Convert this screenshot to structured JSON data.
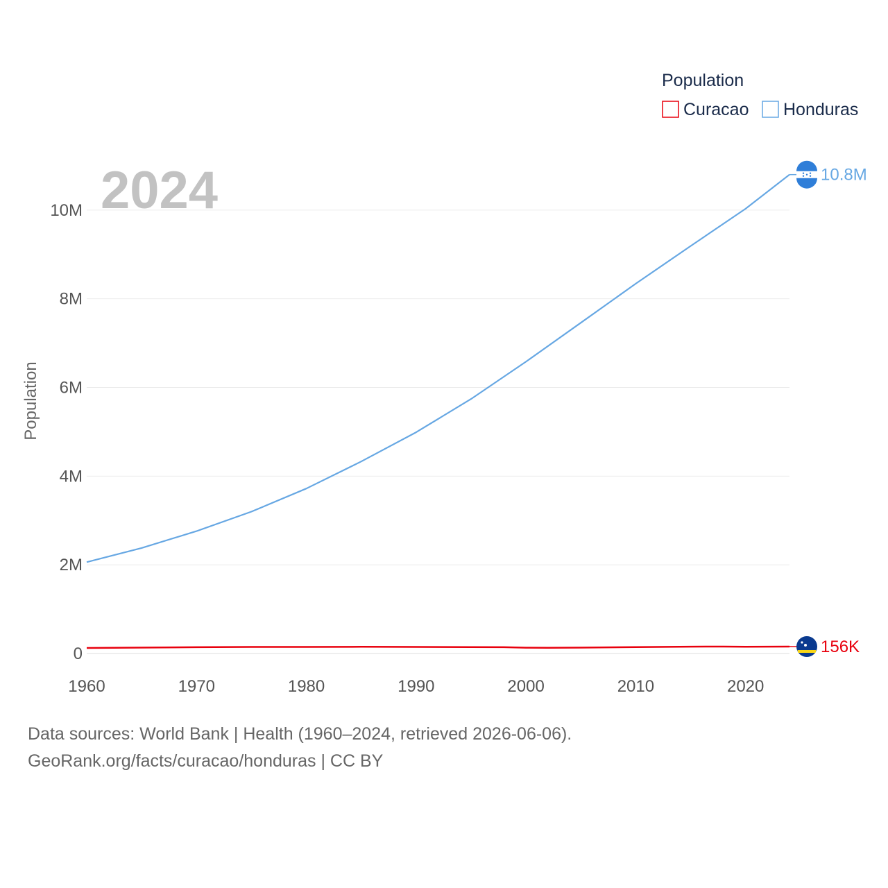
{
  "chart_data": {
    "type": "line",
    "year": "2024",
    "ylabel": "Population",
    "xlim": [
      1960,
      2024
    ],
    "ylim": [
      0,
      10800000
    ],
    "x_ticks": [
      1960,
      1970,
      1980,
      1990,
      2000,
      2010,
      2020
    ],
    "x_tick_labels": [
      "1960",
      "1970",
      "1980",
      "1990",
      "2000",
      "2010",
      "2020"
    ],
    "y_ticks": [
      0,
      2000000,
      4000000,
      6000000,
      8000000,
      10000000
    ],
    "y_tick_labels": [
      "0",
      "2M",
      "4M",
      "6M",
      "8M",
      "10M"
    ],
    "grid": true,
    "legend": {
      "title": "Population",
      "position": "top-right"
    },
    "series": [
      {
        "name": "Curacao",
        "color": "#e8000d",
        "end_label": "156K",
        "icon": "curacao-flag-icon",
        "x": [
          1960,
          1970,
          1975,
          1980,
          1985,
          1990,
          1995,
          1998,
          2000,
          2002,
          2005,
          2010,
          2015,
          2018,
          2020,
          2024
        ],
        "y": [
          125000,
          143000,
          148000,
          148000,
          152000,
          148000,
          145000,
          143000,
          132000,
          128000,
          133000,
          145000,
          155000,
          157000,
          153000,
          156000
        ]
      },
      {
        "name": "Honduras",
        "color": "#66a7e3",
        "end_label": "10.8M",
        "icon": "honduras-flag-icon",
        "x": [
          1960,
          1965,
          1970,
          1975,
          1980,
          1985,
          1990,
          1995,
          2000,
          2005,
          2010,
          2015,
          2020,
          2024
        ],
        "y": [
          2060000,
          2380000,
          2760000,
          3200000,
          3720000,
          4330000,
          4990000,
          5740000,
          6580000,
          7460000,
          8340000,
          9190000,
          10030000,
          10800000
        ]
      }
    ]
  },
  "footer": {
    "sources": "Data sources: World Bank | Health (1960–2024, retrieved 2026-06-06).",
    "credit": "GeoRank.org/facts/curacao/honduras | CC BY"
  }
}
